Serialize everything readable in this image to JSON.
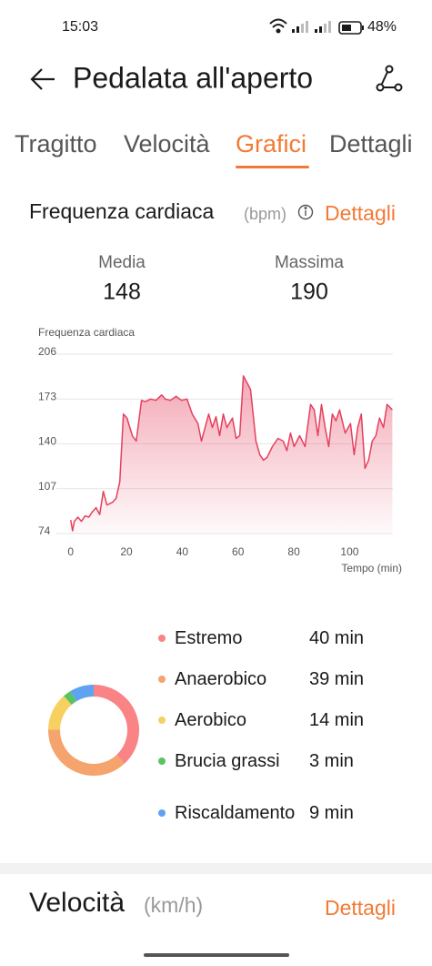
{
  "status_bar": {
    "time": "15:03",
    "battery": "48%"
  },
  "header": {
    "title": "Pedalata all'aperto"
  },
  "tabs": [
    "Tragitto",
    "Velocità",
    "Grafici",
    "Dettagli"
  ],
  "active_tab": 2,
  "heart_rate": {
    "title": "Frequenza cardiaca",
    "unit": "(bpm)",
    "link": "Dettagli",
    "stats": [
      {
        "label": "Media",
        "value": 148
      },
      {
        "label": "Massima",
        "value": 190
      }
    ]
  },
  "chart_data": [
    {
      "type": "line",
      "y_label": "Frequenza cardiaca",
      "x_label": "Tempo (min)",
      "color": "#e5405e",
      "x": [
        0,
        0.7,
        1.3,
        2.6,
        3.9,
        5.2,
        6.5,
        7.8,
        9.1,
        10.4,
        11.7,
        13.0,
        15.0,
        16.3,
        17.6,
        18.9,
        20.2,
        22.1,
        23.5,
        25.4,
        26.7,
        28.7,
        30.6,
        32.6,
        33.9,
        35.8,
        37.8,
        39.7,
        41.7,
        43.6,
        45.6,
        46.9,
        48.2,
        49.5,
        50.8,
        52.1,
        53.4,
        54.7,
        56.0,
        58.0,
        59.3,
        60.6,
        61.9,
        63.2,
        64.5,
        66.4,
        67.8,
        69.1,
        70.4,
        72.3,
        74.3,
        76.2,
        77.5,
        78.8,
        80.1,
        82.1,
        84.0,
        86.0,
        87.3,
        88.6,
        89.9,
        91.2,
        92.5,
        93.8,
        95.1,
        96.4,
        98.4,
        100.3,
        101.6,
        102.9,
        104.2,
        105.5,
        106.8,
        108.1,
        109.4,
        110.7,
        112.1,
        113.4,
        115.3
      ],
      "values": [
        84,
        76,
        83,
        86,
        83,
        87,
        86,
        90,
        93,
        88,
        105,
        95,
        97,
        100,
        112,
        162,
        159,
        146,
        142,
        172,
        171,
        173,
        172,
        176,
        173,
        172,
        175,
        172,
        173,
        162,
        155,
        142,
        152,
        162,
        152,
        160,
        146,
        162,
        152,
        159,
        144,
        146,
        190,
        185,
        180,
        142,
        132,
        128,
        130,
        138,
        144,
        142,
        135,
        148,
        138,
        146,
        138,
        169,
        165,
        146,
        169,
        152,
        138,
        162,
        157,
        165,
        148,
        155,
        132,
        152,
        162,
        122,
        128,
        142,
        146,
        159,
        152,
        169,
        165
      ],
      "xlim": [
        -2.5,
        115.5
      ],
      "ylim": [
        74,
        206
      ],
      "xticks": [
        0,
        20,
        40,
        60,
        80,
        100
      ],
      "yticks": [
        74,
        107,
        140,
        173,
        206
      ],
      "grid": true
    },
    {
      "type": "donut",
      "categories": [
        "Estremo",
        "Anaerobico",
        "Aerobico",
        "Brucia grassi",
        "Riscaldamento"
      ],
      "values": [
        40,
        39,
        14,
        3,
        9
      ],
      "value_labels": [
        "40 min",
        "39 min",
        "14 min",
        "3 min",
        "9 min"
      ],
      "colors": [
        "#f98385",
        "#f4a46c",
        "#f6d160",
        "#5cc45e",
        "#5ea2f2"
      ]
    }
  ],
  "speed": {
    "title": "Velocità",
    "unit": "(km/h)",
    "link": "Dettagli"
  }
}
